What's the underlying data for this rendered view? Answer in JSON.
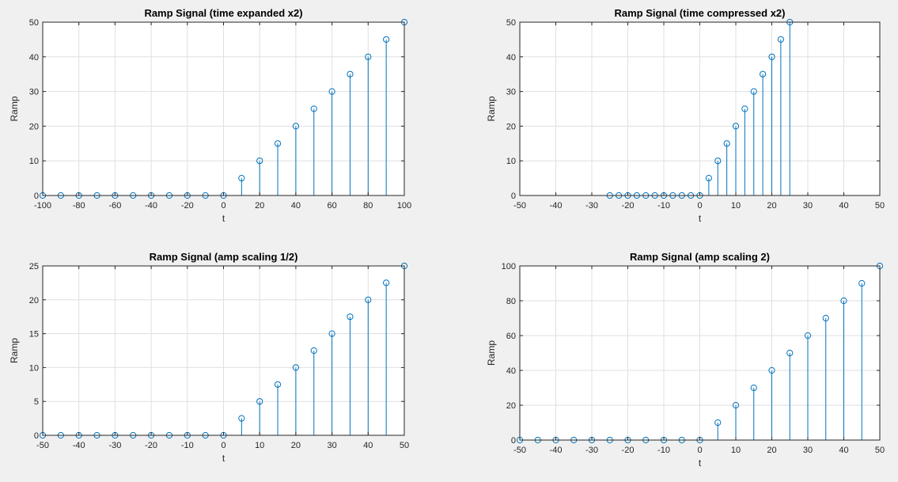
{
  "colors": {
    "figure_bg": "#f0f0f0",
    "axes_bg": "#ffffff",
    "stem": "#0072bd",
    "grid": "#dfdfdf",
    "axis": "#262626"
  },
  "chart_data": [
    {
      "type": "stem",
      "title": "Ramp Signal (time expanded x2)",
      "xlabel": "t",
      "ylabel": "Ramp",
      "xlim": [
        -100,
        100
      ],
      "ylim": [
        0,
        50
      ],
      "xticks": [
        -100,
        -80,
        -60,
        -40,
        -20,
        0,
        20,
        40,
        60,
        80,
        100
      ],
      "yticks": [
        0,
        10,
        20,
        30,
        40,
        50
      ],
      "grid": true,
      "x": [
        -100,
        -90,
        -80,
        -70,
        -60,
        -50,
        -40,
        -30,
        -20,
        -10,
        0,
        10,
        20,
        30,
        40,
        50,
        60,
        70,
        80,
        90,
        100
      ],
      "y": [
        0,
        0,
        0,
        0,
        0,
        0,
        0,
        0,
        0,
        0,
        0,
        5,
        10,
        15,
        20,
        25,
        30,
        35,
        40,
        45,
        50
      ]
    },
    {
      "type": "stem",
      "title": "Ramp Signal (time compressed x2)",
      "xlabel": "t",
      "ylabel": "Ramp",
      "xlim": [
        -50,
        50
      ],
      "ylim": [
        0,
        50
      ],
      "xticks": [
        -50,
        -40,
        -30,
        -20,
        -10,
        0,
        10,
        20,
        30,
        40,
        50
      ],
      "yticks": [
        0,
        10,
        20,
        30,
        40,
        50
      ],
      "grid": true,
      "x": [
        -25,
        -22.5,
        -20,
        -17.5,
        -15,
        -12.5,
        -10,
        -7.5,
        -5,
        -2.5,
        0,
        2.5,
        5,
        7.5,
        10,
        12.5,
        15,
        17.5,
        20,
        22.5,
        25
      ],
      "y": [
        0,
        0,
        0,
        0,
        0,
        0,
        0,
        0,
        0,
        0,
        0,
        5,
        10,
        15,
        20,
        25,
        30,
        35,
        40,
        45,
        50
      ]
    },
    {
      "type": "stem",
      "title": "Ramp Signal (amp scaling 1/2)",
      "xlabel": "t",
      "ylabel": "Ramp",
      "xlim": [
        -50,
        50
      ],
      "ylim": [
        0,
        25
      ],
      "xticks": [
        -50,
        -40,
        -30,
        -20,
        -10,
        0,
        10,
        20,
        30,
        40,
        50
      ],
      "yticks": [
        0,
        5,
        10,
        15,
        20,
        25
      ],
      "grid": true,
      "x": [
        -50,
        -45,
        -40,
        -35,
        -30,
        -25,
        -20,
        -15,
        -10,
        -5,
        0,
        5,
        10,
        15,
        20,
        25,
        30,
        35,
        40,
        45,
        50
      ],
      "y": [
        0,
        0,
        0,
        0,
        0,
        0,
        0,
        0,
        0,
        0,
        0,
        2.5,
        5,
        7.5,
        10,
        12.5,
        15,
        17.5,
        20,
        22.5,
        25
      ]
    },
    {
      "type": "stem",
      "title": "Ramp Signal (amp scaling 2)",
      "xlabel": "t",
      "ylabel": "Ramp",
      "xlim": [
        -50,
        50
      ],
      "ylim": [
        0,
        100
      ],
      "xticks": [
        -50,
        -40,
        -30,
        -20,
        -10,
        0,
        10,
        20,
        30,
        40,
        50
      ],
      "yticks": [
        0,
        20,
        40,
        60,
        80,
        100
      ],
      "grid": true,
      "x": [
        -50,
        -45,
        -40,
        -35,
        -30,
        -25,
        -20,
        -15,
        -10,
        -5,
        0,
        5,
        10,
        15,
        20,
        25,
        30,
        35,
        40,
        45,
        50
      ],
      "y": [
        0,
        0,
        0,
        0,
        0,
        0,
        0,
        0,
        0,
        0,
        0,
        10,
        20,
        30,
        40,
        50,
        60,
        70,
        80,
        90,
        100
      ]
    }
  ]
}
